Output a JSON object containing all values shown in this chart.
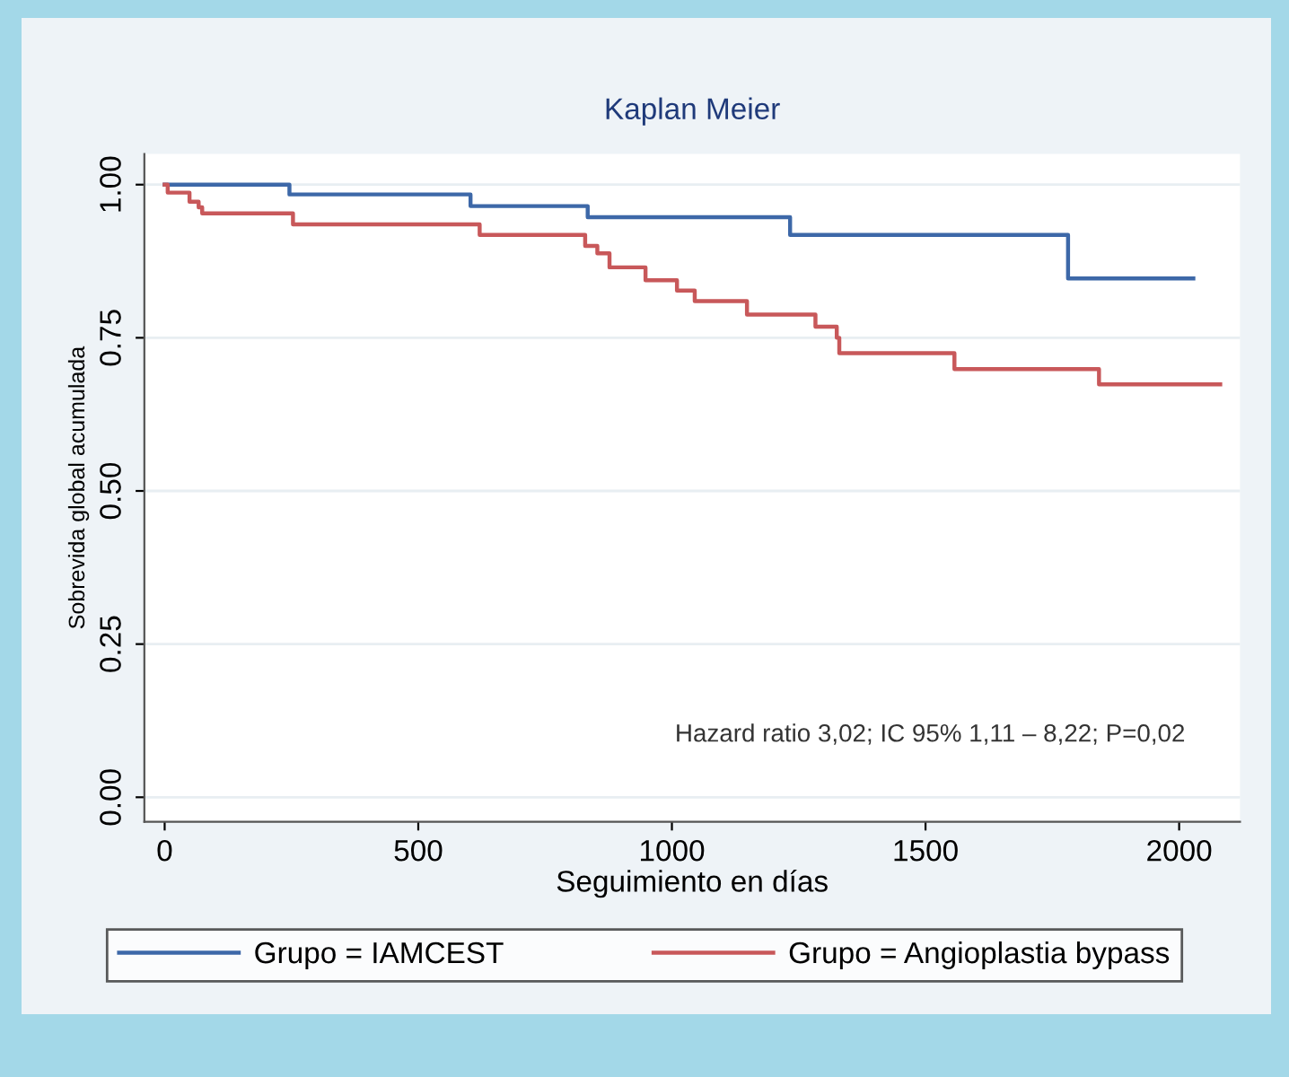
{
  "chart_data": {
    "type": "step",
    "title": "Kaplan Meier",
    "xlabel": "Seguimiento en días",
    "ylabel": "Sobrevida global acumulada",
    "series": [
      {
        "name": "Grupo = IAMCEST",
        "color": "#3d68a8",
        "x": [
          0,
          246,
          603,
          834,
          1233,
          1781,
          2028
        ],
        "values": [
          1.0,
          0.984,
          0.965,
          0.947,
          0.918,
          0.847,
          0.847
        ]
      },
      {
        "name": "Grupo = Angioplastia bypass",
        "color": "#c8585a",
        "x": [
          0,
          6,
          49,
          67,
          74,
          253,
          621,
          829,
          853,
          877,
          948,
          1010,
          1045,
          1148,
          1283,
          1325,
          1330,
          1557,
          1842,
          2081
        ],
        "values": [
          1.0,
          0.987,
          0.972,
          0.963,
          0.953,
          0.935,
          0.918,
          0.9,
          0.888,
          0.865,
          0.844,
          0.827,
          0.81,
          0.788,
          0.768,
          0.75,
          0.725,
          0.699,
          0.674,
          0.674
        ]
      }
    ],
    "xlim": [
      -40,
      2120
    ],
    "xticks": [
      0,
      500,
      1000,
      1500,
      2000
    ],
    "ylim": [
      -0.04,
      1.05
    ],
    "yticks": [
      {
        "value": 0,
        "label": "0.00"
      },
      {
        "value": 0.25,
        "label": "0.25"
      },
      {
        "value": 0.5,
        "label": "0.50"
      },
      {
        "value": 0.75,
        "label": "0.75"
      },
      {
        "value": 1,
        "label": "1.00"
      }
    ],
    "grid": "y",
    "legend": "bottom",
    "annotations": [
      "Hazard ratio 3,02; IC 95% 1,11 – 8,22; P=0,02"
    ]
  }
}
